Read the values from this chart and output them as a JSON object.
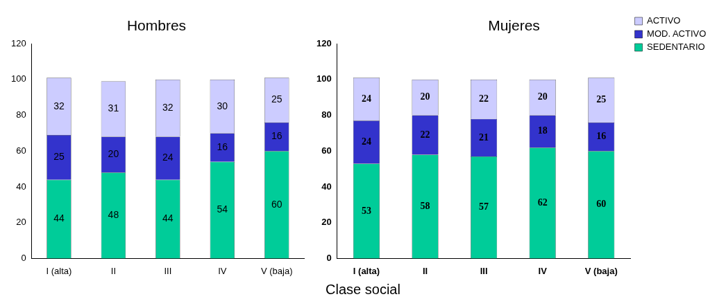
{
  "chart_data": [
    {
      "type": "bar",
      "title": "Hombres",
      "categories": [
        "I (alta)",
        "II",
        "III",
        "IV",
        "V (baja)"
      ],
      "stacked": true,
      "ylim": [
        0,
        120
      ],
      "yticks": [
        0,
        20,
        40,
        60,
        80,
        100,
        120
      ],
      "grid": false,
      "legend": false,
      "data_labels": true,
      "series": [
        {
          "color": "#00cc99",
          "values": [
            44,
            48,
            44,
            54,
            60
          ]
        },
        {
          "color": "#3333cc",
          "values": [
            25,
            20,
            24,
            16,
            16
          ]
        },
        {
          "color": "#ccccff",
          "values": [
            32,
            31,
            32,
            30,
            25
          ]
        }
      ]
    },
    {
      "type": "bar",
      "title": "Mujeres",
      "xlabel": "Clase social",
      "categories": [
        "I (alta)",
        "II",
        "III",
        "IV",
        "V (baja)"
      ],
      "stacked": true,
      "ylim": [
        0,
        120
      ],
      "yticks": [
        0,
        20,
        40,
        60,
        80,
        100,
        120
      ],
      "grid": false,
      "legend": "right",
      "data_labels": true,
      "series": [
        {
          "name": "SEDENTARIO",
          "color": "#00cc99",
          "values": [
            53,
            58,
            57,
            62,
            60
          ]
        },
        {
          "name": "MOD. ACTIVO",
          "color": "#3333cc",
          "values": [
            24,
            22,
            21,
            18,
            16
          ]
        },
        {
          "name": "ACTIVO",
          "color": "#ccccff",
          "values": [
            24,
            20,
            22,
            20,
            25
          ]
        }
      ]
    }
  ]
}
